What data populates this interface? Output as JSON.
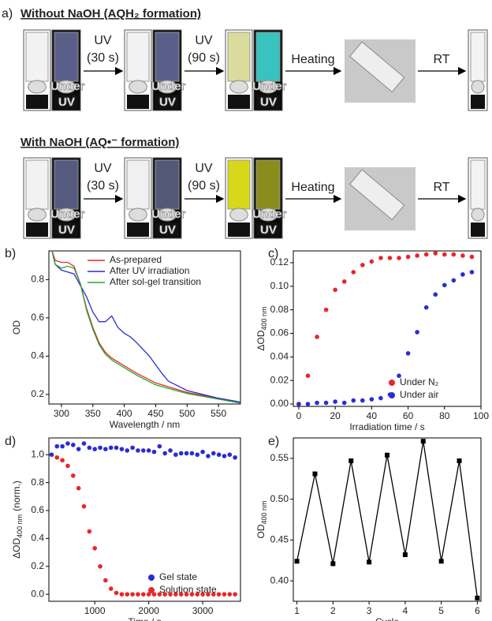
{
  "panel_a": {
    "label": "a)",
    "rows": [
      {
        "title": "Without NaOH (AQH₂ formation)",
        "overlay": [
          "Under",
          "UV"
        ],
        "steps": [
          {
            "top": "UV",
            "bottom": "(30 s)"
          },
          {
            "top": "UV",
            "bottom": "(90 s)"
          },
          {
            "top": "Heating"
          },
          {
            "top": "RT"
          }
        ]
      },
      {
        "title": "With NaOH (AQ•⁻ formation)",
        "overlay": [
          "Under",
          "UV"
        ],
        "steps": [
          {
            "top": "UV",
            "bottom": "(30 s)"
          },
          {
            "top": "UV",
            "bottom": "(90 s)"
          },
          {
            "top": "Heating"
          },
          {
            "top": "RT"
          }
        ]
      }
    ]
  },
  "chart_data": [
    {
      "type": "line",
      "panel": "b)",
      "x_label": "Wavelength / nm",
      "y_label": "OD",
      "xlim": [
        280,
        585
      ],
      "ylim": [
        0.15,
        0.95
      ],
      "xticks": [
        300,
        350,
        400,
        450,
        500,
        550
      ],
      "yticks": [
        0.2,
        0.4,
        0.6,
        0.8
      ],
      "legend": "upper right",
      "series": [
        {
          "name": "As-prepared",
          "color": "#e8262a",
          "x": [
            285,
            290,
            300,
            310,
            320,
            330,
            340,
            350,
            360,
            370,
            380,
            400,
            420,
            450,
            500,
            550,
            585
          ],
          "values": [
            0.95,
            0.9,
            0.89,
            0.89,
            0.87,
            0.78,
            0.65,
            0.55,
            0.47,
            0.42,
            0.39,
            0.35,
            0.31,
            0.26,
            0.21,
            0.18,
            0.16
          ]
        },
        {
          "name": "After UV irradiation",
          "color": "#2b2bd6",
          "x": [
            285,
            290,
            300,
            310,
            320,
            330,
            340,
            350,
            360,
            370,
            380,
            390,
            400,
            410,
            420,
            440,
            460,
            470,
            500,
            550,
            585
          ],
          "values": [
            0.95,
            0.88,
            0.85,
            0.84,
            0.83,
            0.77,
            0.71,
            0.63,
            0.58,
            0.58,
            0.61,
            0.55,
            0.52,
            0.5,
            0.47,
            0.4,
            0.31,
            0.27,
            0.22,
            0.18,
            0.16
          ]
        },
        {
          "name": "After sol-gel transition",
          "color": "#2aa52a",
          "x": [
            285,
            290,
            300,
            310,
            320,
            330,
            340,
            350,
            360,
            370,
            380,
            400,
            420,
            450,
            500,
            550,
            585
          ],
          "values": [
            0.95,
            0.88,
            0.86,
            0.87,
            0.86,
            0.78,
            0.64,
            0.54,
            0.46,
            0.41,
            0.38,
            0.34,
            0.3,
            0.25,
            0.205,
            0.175,
            0.155
          ]
        }
      ]
    },
    {
      "type": "scatter",
      "panel": "c)",
      "x_label": "Irradiation time / s",
      "y_label": "ΔOD",
      "y_label_sub": "400 nm",
      "xlim": [
        -3,
        100
      ],
      "ylim": [
        -0.002,
        0.13
      ],
      "xticks": [
        0,
        20,
        40,
        60,
        80,
        100
      ],
      "yticks": [
        {
          "value": 0,
          "label": "0.00"
        },
        0.02,
        0.04,
        0.06,
        0.08,
        {
          "value": 0.1,
          "label": "0.10"
        },
        0.12
      ],
      "legend": "lower right",
      "series": [
        {
          "name": "Under N₂",
          "color": "#e8262a",
          "x": [
            0,
            5,
            10,
            15,
            20,
            25,
            30,
            35,
            40,
            45,
            50,
            55,
            60,
            65,
            70,
            75,
            80,
            85,
            90,
            95
          ],
          "values": [
            0,
            0.024,
            0.057,
            0.08,
            0.097,
            0.104,
            0.112,
            0.118,
            0.121,
            0.124,
            0.124,
            0.124,
            0.125,
            0.126,
            0.127,
            0.128,
            0.127,
            0.127,
            0.126,
            0.125
          ]
        },
        {
          "name": "Under air",
          "color": "#2b2bd6",
          "x": [
            0,
            5,
            10,
            15,
            20,
            25,
            30,
            35,
            40,
            45,
            50,
            55,
            60,
            65,
            70,
            75,
            80,
            85,
            90,
            95
          ],
          "values": [
            0,
            0,
            0.001,
            0.001,
            0.002,
            0.001,
            0.003,
            0.003,
            0.004,
            0.005,
            0.008,
            0.024,
            0.043,
            0.061,
            0.082,
            0.093,
            0.101,
            0.105,
            0.11,
            0.112
          ]
        }
      ]
    },
    {
      "type": "scatter",
      "panel": "d)",
      "x_label": "Time / s",
      "y_label": "ΔOD",
      "y_label_sub": "400 nm",
      "y_label_suffix": "(norm.)",
      "xlim": [
        150,
        3700
      ],
      "ylim": [
        -0.05,
        1.12
      ],
      "xticks": [
        1000,
        2000,
        3000
      ],
      "yticks": [
        {
          "value": 0,
          "label": "0.0"
        },
        0.2,
        0.4,
        0.6,
        0.8,
        {
          "value": 1,
          "label": "1.0"
        }
      ],
      "legend": "lower right",
      "series": [
        {
          "name": "Gel state",
          "color": "#2b2bd6",
          "x": [
            200,
            300,
            400,
            500,
            600,
            700,
            800,
            900,
            1000,
            1100,
            1200,
            1300,
            1400,
            1500,
            1600,
            1700,
            1800,
            1900,
            2000,
            2100,
            2200,
            2300,
            2400,
            2500,
            2600,
            2700,
            2800,
            2900,
            3000,
            3100,
            3200,
            3300,
            3400,
            3500,
            3600
          ],
          "values": [
            1.0,
            1.06,
            1.06,
            1.08,
            1.07,
            1.04,
            1.08,
            1.05,
            1.04,
            1.05,
            1.04,
            1.05,
            1.05,
            1.04,
            1.03,
            1.05,
            1.03,
            1.03,
            1.03,
            1.02,
            1.06,
            1.01,
            1.03,
            1.0,
            1.01,
            1.01,
            1.01,
            1.0,
            1.02,
            0.99,
            1.01,
            1.0,
            0.99,
            1.0,
            0.98
          ]
        },
        {
          "name": "Solution state",
          "color": "#e8262a",
          "x": [
            300,
            400,
            500,
            600,
            700,
            800,
            900,
            1000,
            1100,
            1200,
            1300,
            1400,
            1500,
            1600,
            1700,
            1800,
            1900,
            2000,
            2100,
            2200,
            2300,
            2400,
            2500,
            2600,
            2700,
            2800,
            2900,
            3000,
            3100,
            3200,
            3300,
            3400,
            3500,
            3600
          ],
          "values": [
            0.98,
            0.96,
            0.92,
            0.85,
            0.76,
            0.63,
            0.45,
            0.33,
            0.2,
            0.1,
            0.04,
            0.01,
            0,
            0,
            0,
            0,
            0,
            0,
            0,
            0,
            0,
            0,
            0,
            0,
            0,
            0,
            0,
            0,
            0,
            0,
            0,
            0,
            0,
            0
          ]
        }
      ]
    },
    {
      "type": "line",
      "panel": "e)",
      "x_label": "Cycle",
      "y_label": "OD",
      "y_label_sub": "400 nm",
      "marker": "square",
      "xlim": [
        0.9,
        6.1
      ],
      "ylim": [
        0.375,
        0.575
      ],
      "xticks": [
        1,
        2,
        3,
        4,
        5,
        6
      ],
      "yticks": [
        {
          "value": 0.4,
          "label": "0.40"
        },
        0.45,
        {
          "value": 0.5,
          "label": "0.50"
        },
        0.55
      ],
      "series": [
        {
          "color": "#000000",
          "x": [
            1,
            1.5,
            2,
            2.5,
            3,
            3.5,
            4,
            4.5,
            5,
            5.5,
            6
          ],
          "values": [
            0.424,
            0.531,
            0.421,
            0.547,
            0.423,
            0.554,
            0.432,
            0.571,
            0.424,
            0.547,
            0.379
          ]
        }
      ]
    }
  ]
}
